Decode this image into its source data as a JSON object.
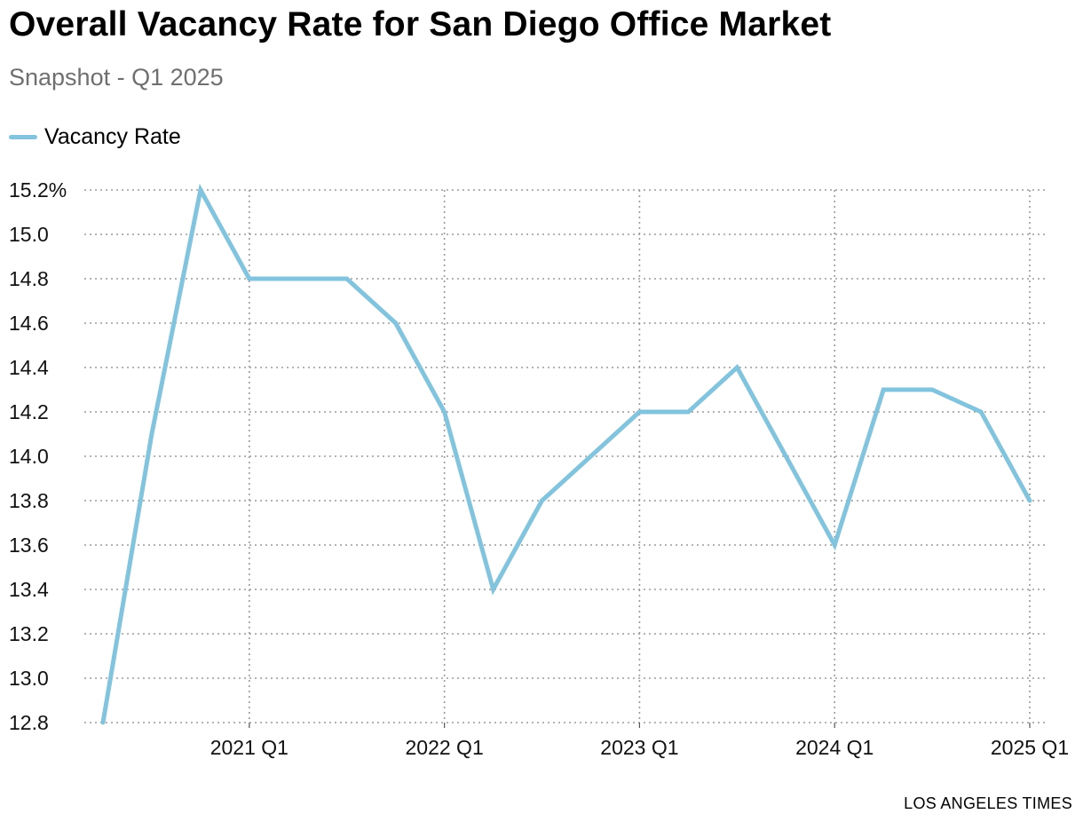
{
  "chart_data": {
    "type": "line",
    "title": "Overall Vacancy Rate for San Diego Office Market",
    "subtitle": "Snapshot - Q1 2025",
    "xlabel": "",
    "ylabel": "",
    "x": [
      "2020 Q2",
      "2020 Q3",
      "2020 Q4",
      "2021 Q1",
      "2021 Q2",
      "2021 Q3",
      "2021 Q4",
      "2022 Q1",
      "2022 Q2",
      "2022 Q3",
      "2022 Q4",
      "2023 Q1",
      "2023 Q2",
      "2023 Q3",
      "2023 Q4",
      "2024 Q1",
      "2024 Q2",
      "2024 Q3",
      "2024 Q4",
      "2025 Q1"
    ],
    "series": [
      {
        "name": "Vacancy Rate",
        "color": "#82c4dd",
        "values": [
          12.8,
          14.1,
          15.2,
          14.8,
          14.8,
          14.8,
          14.6,
          14.2,
          13.4,
          13.8,
          14.0,
          14.2,
          14.2,
          14.4,
          14.0,
          13.6,
          14.3,
          14.3,
          14.2,
          13.8
        ]
      }
    ],
    "ylim": [
      12.8,
      15.2
    ],
    "yticks": [
      12.8,
      13.0,
      13.2,
      13.4,
      13.6,
      13.8,
      14.0,
      14.2,
      14.4,
      14.6,
      14.8,
      15.0,
      15.2
    ],
    "ytick_labels": [
      "12.8",
      "13.0",
      "13.2",
      "13.4",
      "13.6",
      "13.8",
      "14.0",
      "14.2",
      "14.4",
      "14.6",
      "14.8",
      "15.0",
      "15.2%"
    ],
    "xticks": [
      "2021 Q1",
      "2022 Q1",
      "2023 Q1",
      "2024 Q1",
      "2025 Q1"
    ],
    "grid": true,
    "legend_position": "top-left"
  },
  "credit": "LOS ANGELES TIMES"
}
